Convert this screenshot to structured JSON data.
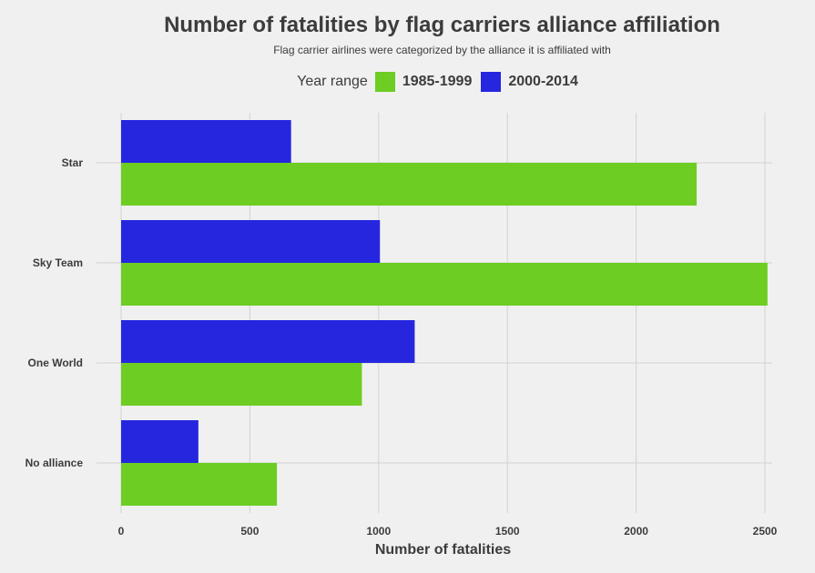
{
  "chart_data": {
    "type": "bar",
    "orientation": "horizontal",
    "title": "Number of fatalities by flag carriers alliance affiliation",
    "subtitle": "Flag carrier airlines were categorized by the alliance it is affiliated with",
    "legend_title": "Year range",
    "legend_position": "top",
    "categories": [
      "Star",
      "Sky Team",
      "One World",
      "No alliance"
    ],
    "series": [
      {
        "name": "1985-1999",
        "color": "#6dcd22",
        "values": [
          2235,
          2510,
          935,
          605
        ]
      },
      {
        "name": "2000-2014",
        "color": "#2626df",
        "values": [
          660,
          1005,
          1140,
          300
        ]
      }
    ],
    "xlabel": "Number of fatalities",
    "ylabel": "",
    "xlim": [
      0,
      2620
    ],
    "xticks": [
      0,
      500,
      1000,
      1500,
      2000,
      2500
    ],
    "grid": true
  }
}
